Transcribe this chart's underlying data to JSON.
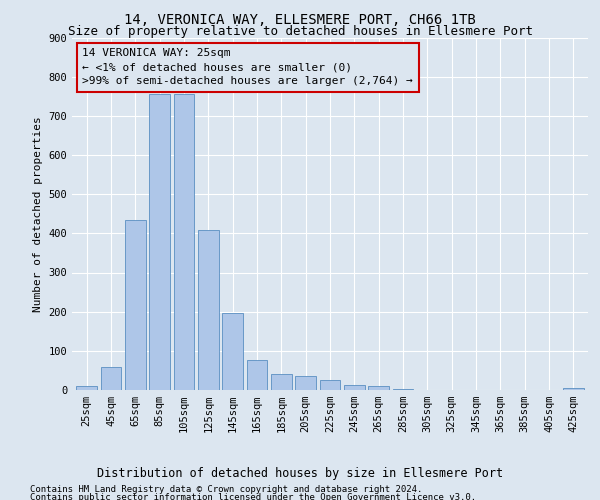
{
  "title": "14, VERONICA WAY, ELLESMERE PORT, CH66 1TB",
  "subtitle": "Size of property relative to detached houses in Ellesmere Port",
  "xlabel": "Distribution of detached houses by size in Ellesmere Port",
  "ylabel": "Number of detached properties",
  "footnote1": "Contains HM Land Registry data © Crown copyright and database right 2024.",
  "footnote2": "Contains public sector information licensed under the Open Government Licence v3.0.",
  "annotation_line1": "14 VERONICA WAY: 25sqm",
  "annotation_line2": "← <1% of detached houses are smaller (0)",
  "annotation_line3": ">99% of semi-detached houses are larger (2,764) →",
  "bar_labels": [
    "25sqm",
    "45sqm",
    "65sqm",
    "85sqm",
    "105sqm",
    "125sqm",
    "145sqm",
    "165sqm",
    "185sqm",
    "205sqm",
    "225sqm",
    "245sqm",
    "265sqm",
    "285sqm",
    "305sqm",
    "325sqm",
    "345sqm",
    "365sqm",
    "385sqm",
    "405sqm",
    "425sqm"
  ],
  "bar_values": [
    10,
    58,
    435,
    755,
    755,
    408,
    197,
    76,
    42,
    35,
    26,
    12,
    10,
    2,
    0,
    0,
    0,
    0,
    0,
    0,
    5
  ],
  "bar_color": "#aec6e8",
  "bar_edge_color": "#5a8fc2",
  "background_color": "#dce6f0",
  "axes_background": "#dce6f0",
  "annotation_box_facecolor": "#dce6f0",
  "annotation_box_edgecolor": "#cc0000",
  "ylim": [
    0,
    900
  ],
  "yticks": [
    0,
    100,
    200,
    300,
    400,
    500,
    600,
    700,
    800,
    900
  ],
  "grid_color": "#ffffff",
  "title_fontsize": 10,
  "subtitle_fontsize": 9,
  "annotation_fontsize": 8,
  "ylabel_fontsize": 8,
  "xlabel_fontsize": 8.5,
  "tick_fontsize": 7.5,
  "footnote_fontsize": 6.5
}
